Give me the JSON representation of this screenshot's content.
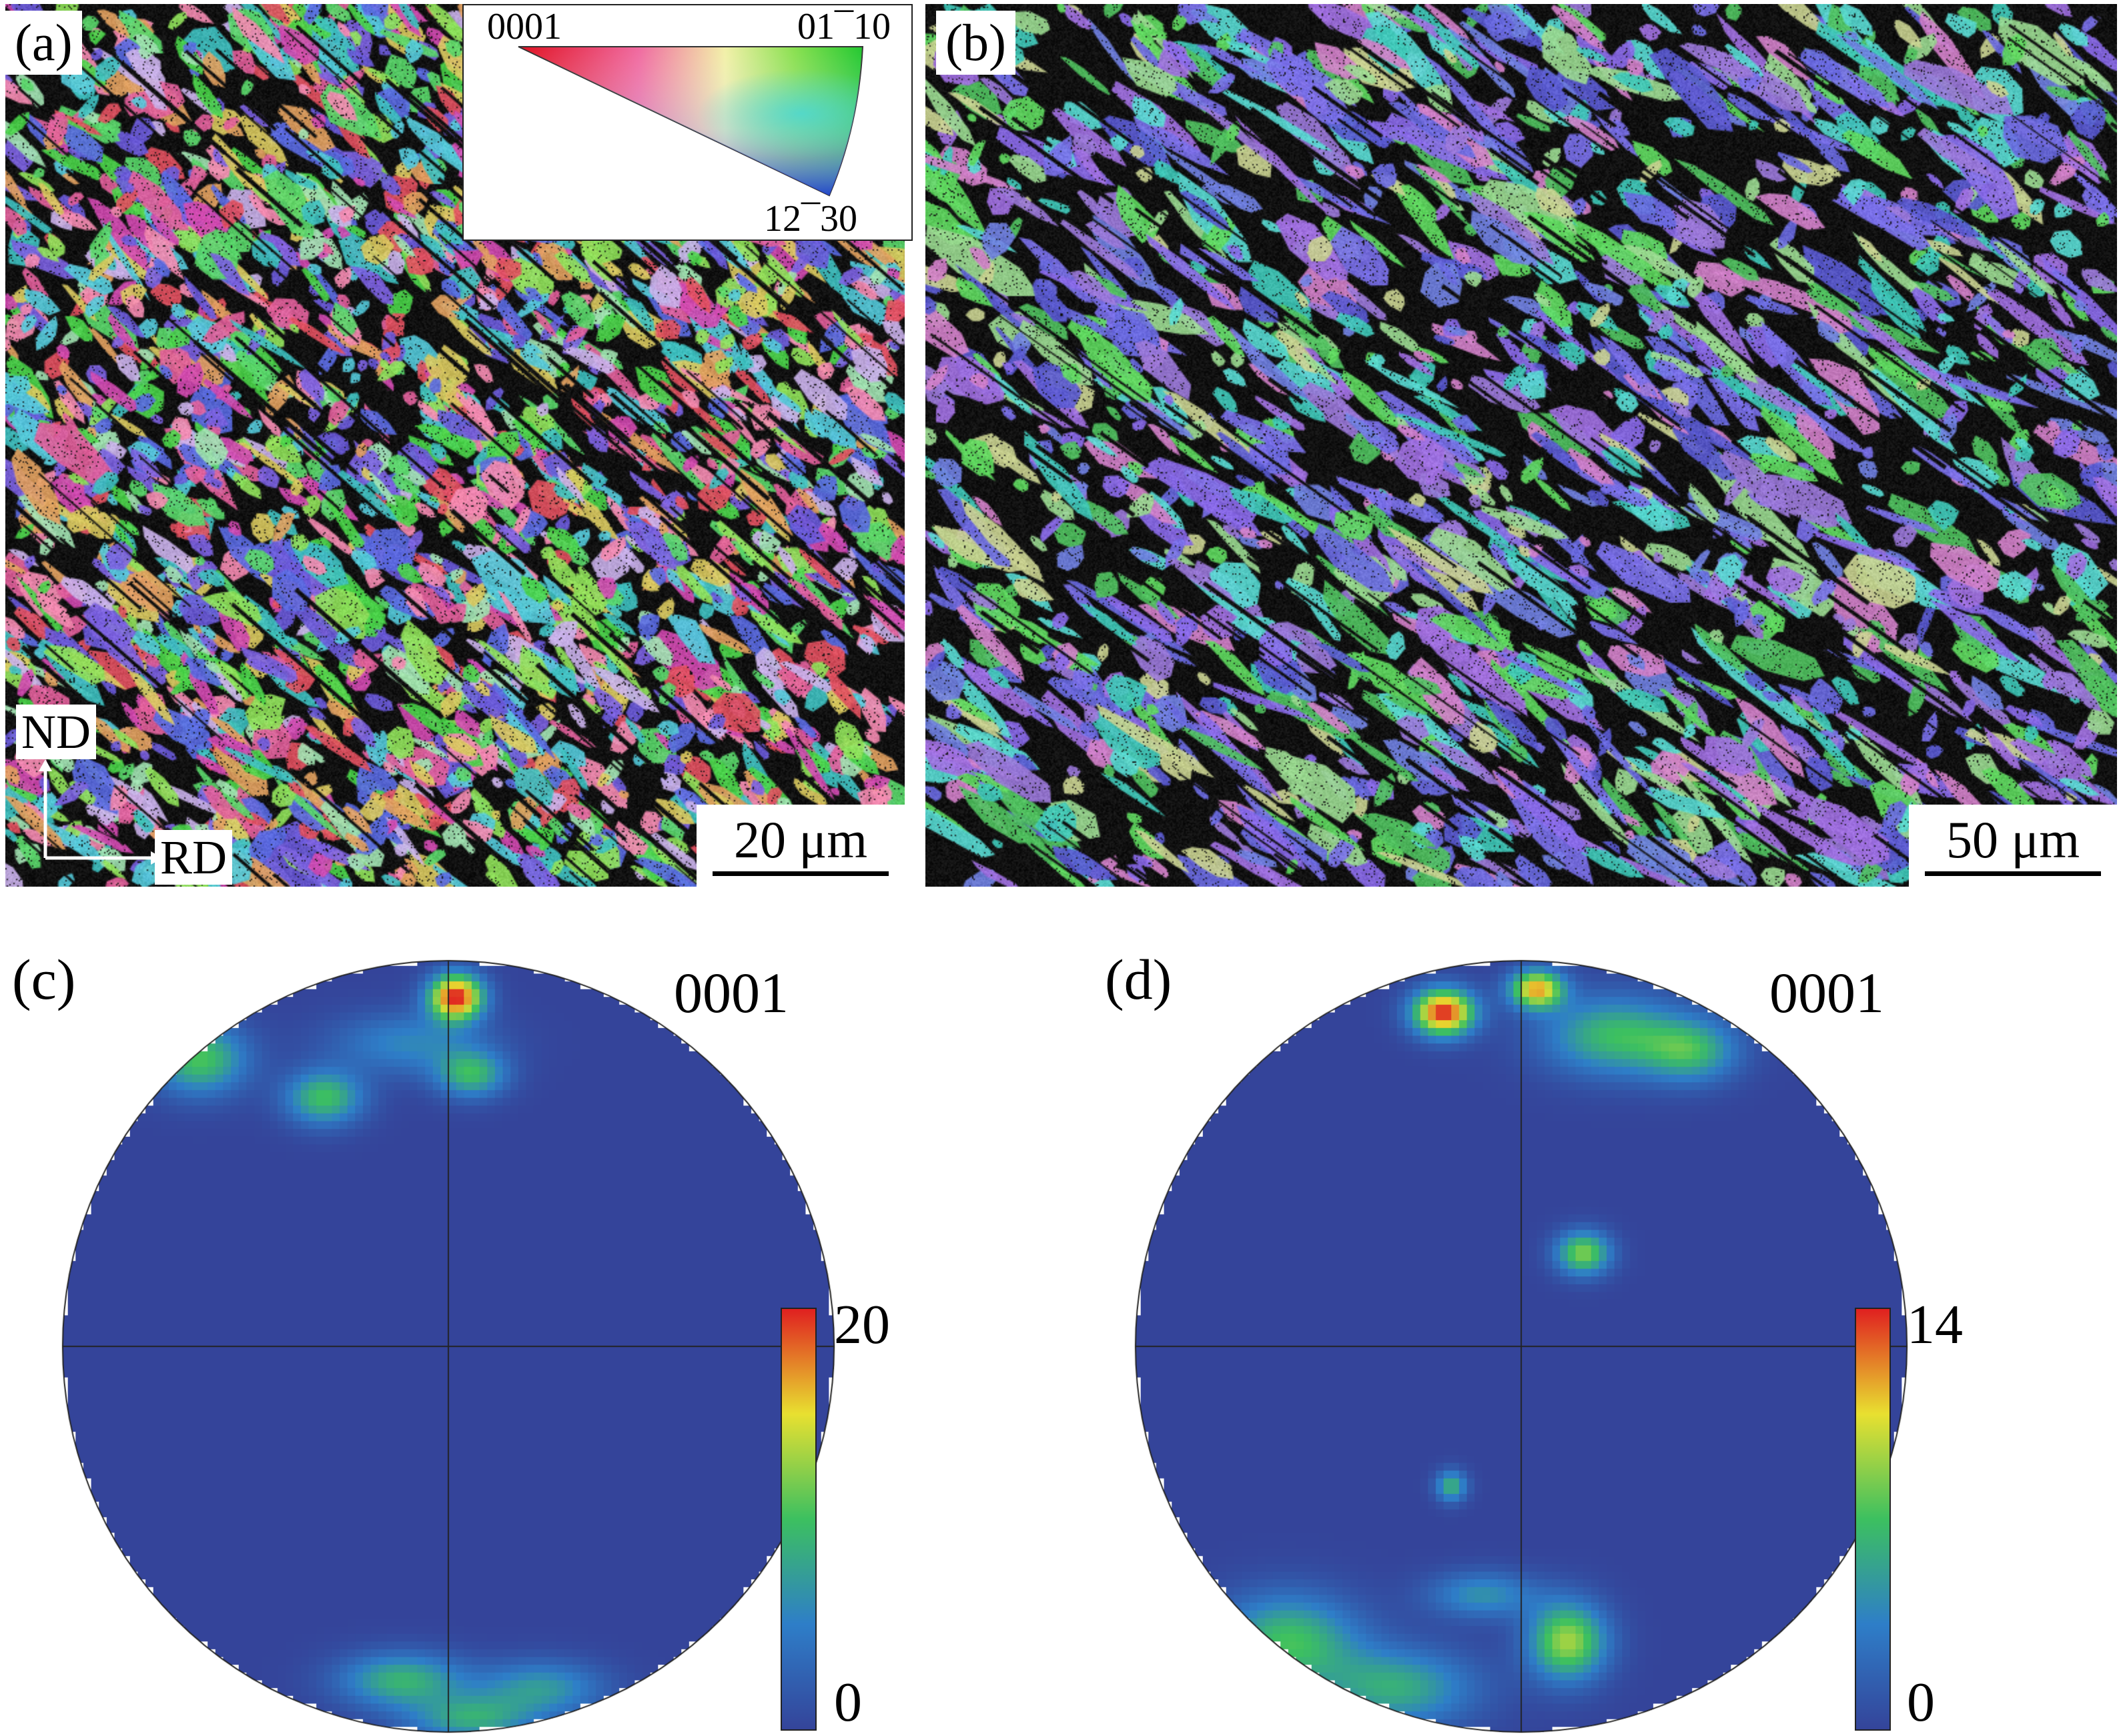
{
  "panels": {
    "a": {
      "label": "(a)",
      "legend": {
        "top_left": "0001",
        "top_right": "01¯10",
        "bottom": "12¯30"
      },
      "axes": {
        "vertical": "ND",
        "horizontal": "RD"
      },
      "scalebar": "20 μm"
    },
    "b": {
      "label": "(b)",
      "scalebar": "50 μm"
    },
    "c": {
      "label": "(c)",
      "pole": "0001",
      "colorbar": {
        "max": "20",
        "min": "0"
      }
    },
    "d": {
      "label": "(d)",
      "pole": "0001",
      "colorbar": {
        "max": "14",
        "min": "0"
      }
    }
  },
  "colors": {
    "pf_background": "#3a4a9a",
    "boundary": "#111111",
    "hot": "#e8202a",
    "warm": "#f2e020",
    "mid": "#4cc04a"
  }
}
